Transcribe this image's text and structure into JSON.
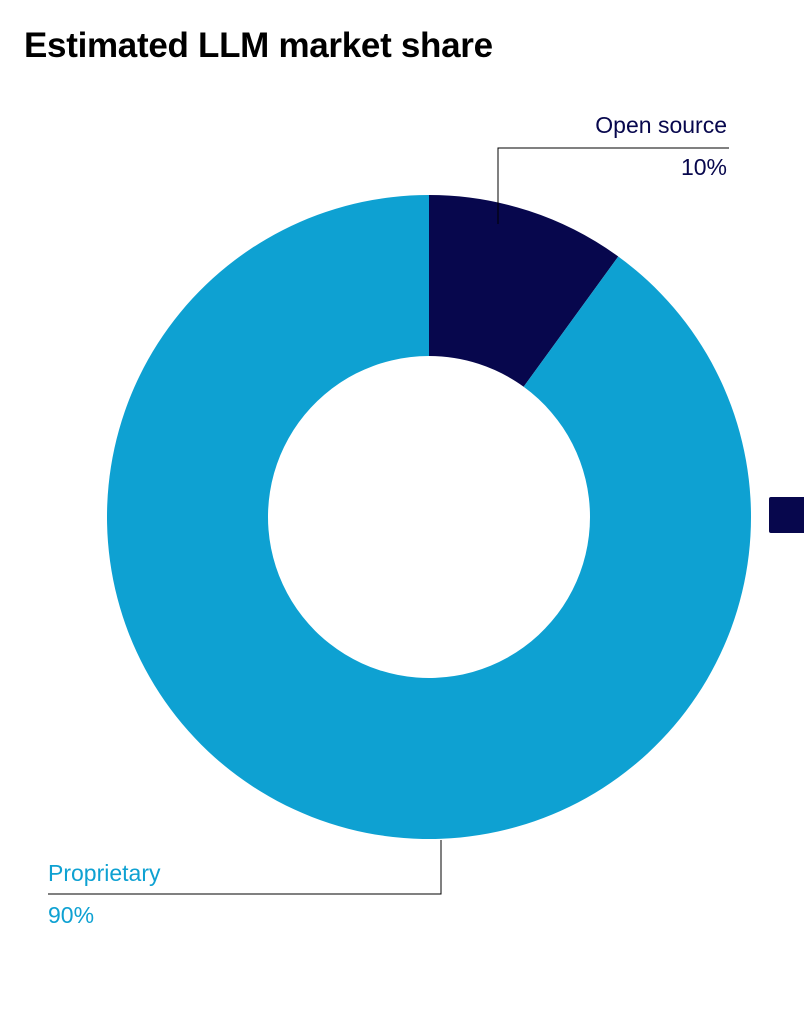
{
  "colors": {
    "open_source": "#07074d",
    "proprietary": "#0ea1d2"
  },
  "chart_data": {
    "type": "pie",
    "variant": "donut",
    "title": "Estimated LLM market share",
    "slices": [
      {
        "label": "Open source",
        "value": 10,
        "display": "10%",
        "color": "#07074d"
      },
      {
        "label": "Proprietary",
        "value": 90,
        "display": "90%",
        "color": "#0ea1d2"
      }
    ]
  }
}
